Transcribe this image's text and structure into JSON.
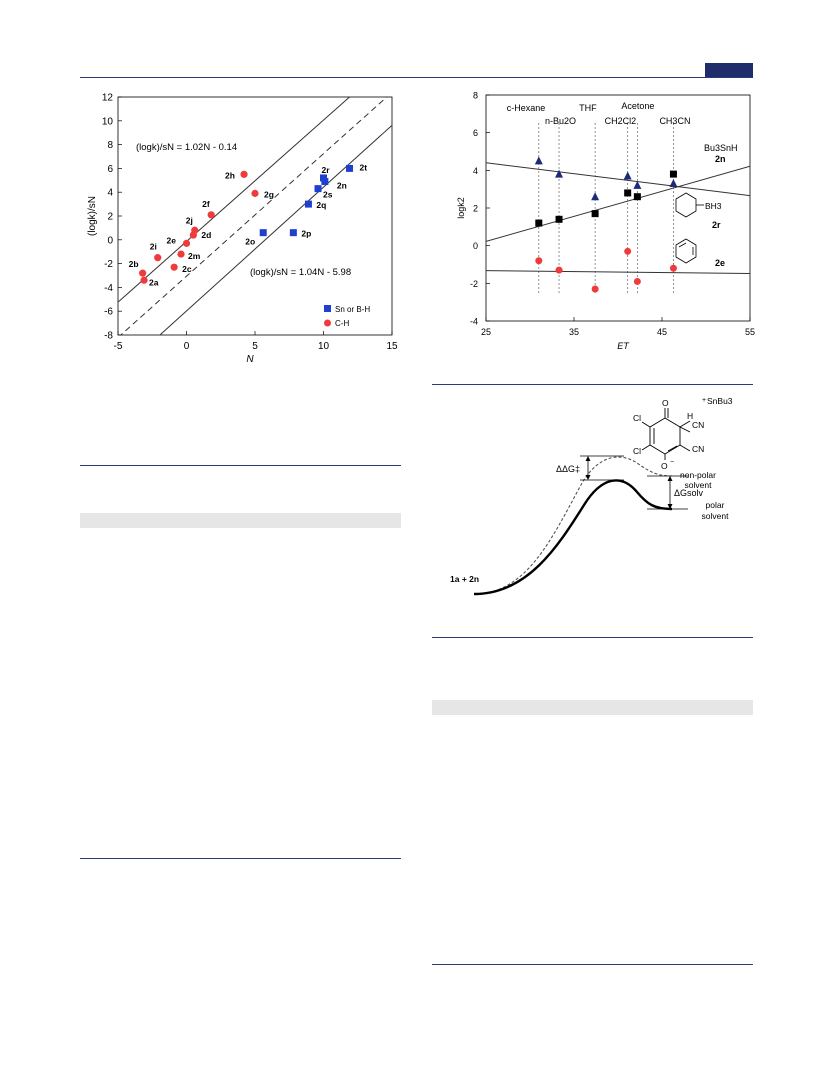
{
  "colors": {
    "rule": "#2b3a7a",
    "tab": "#1f2d6b",
    "band": "#e6e6e6",
    "blue": "#1f3fd1",
    "red": "#ef3b3b",
    "navy": "#1d2a7a"
  },
  "figure_left": {
    "xlabel": "N",
    "ylabel": "(logk)/sN",
    "xticks": [
      "-5",
      "0",
      "5",
      "10",
      "15"
    ],
    "yticks": [
      "12",
      "10",
      "8",
      "6",
      "4",
      "2",
      "0",
      "-2",
      "-4",
      "-6",
      "-8"
    ],
    "eq_upper": "(logk)/sN = 1.02N - 0.14",
    "eq_lower": "(logk)/sN = 1.04N - 5.98",
    "legend": [
      "Sn or B-H",
      "C-H"
    ]
  },
  "figure_right": {
    "xlabel": "ET",
    "ylabel": "logk2",
    "xticks": [
      "25",
      "35",
      "45",
      "55"
    ],
    "yticks": [
      "8",
      "6",
      "4",
      "2",
      "0",
      "-2",
      "-4"
    ],
    "solvents": [
      "c-Hexane",
      "n-Bu2O",
      "THF",
      "CH2Cl2",
      "Acetone",
      "CH3CN"
    ],
    "labels": {
      "bu3snh": "Bu3SnH",
      "n2n": "2n",
      "bh3": "BH3",
      "n2r": "2r",
      "n2e": "2e"
    }
  },
  "figure_energy": {
    "reactants": "1a  +  2n",
    "ddg": "ΔΔG‡",
    "dgsolv": "ΔGsolv",
    "nonpolar": [
      "non-polar",
      "solvent"
    ],
    "polar": [
      "polar",
      "solvent"
    ],
    "cation": "SnBu3",
    "atoms": {
      "o": "O",
      "cl1": "Cl",
      "cl2": "Cl",
      "h": "H",
      "cn1": "CN",
      "cn2": "CN",
      "om": "O"
    }
  },
  "chart_data": [
    {
      "type": "scatter",
      "xlabel": "N",
      "ylabel": "(logk)/sN",
      "xlim": [
        -5,
        15
      ],
      "ylim": [
        -8,
        12
      ],
      "series": [
        {
          "name": "Sn or B-H",
          "points": [
            {
              "label": "2o",
              "x": 5.6,
              "y": 0.6
            },
            {
              "label": "2p",
              "x": 7.8,
              "y": 0.6
            },
            {
              "label": "2q",
              "x": 8.9,
              "y": 3.0
            },
            {
              "label": "2s",
              "x": 9.6,
              "y": 4.3
            },
            {
              "label": "2r",
              "x": 10.0,
              "y": 5.2
            },
            {
              "label": "2n",
              "x": 10.1,
              "y": 4.9
            },
            {
              "label": "2t",
              "x": 11.9,
              "y": 6.0
            }
          ]
        },
        {
          "name": "C-H",
          "points": [
            {
              "label": "2a",
              "x": -3.1,
              "y": -3.4
            },
            {
              "label": "2b",
              "x": -3.2,
              "y": -2.8
            },
            {
              "label": "2i",
              "x": -2.1,
              "y": -1.5
            },
            {
              "label": "2c",
              "x": -0.9,
              "y": -2.3
            },
            {
              "label": "2m",
              "x": -0.4,
              "y": -1.2
            },
            {
              "label": "2e",
              "x": 0.0,
              "y": -0.3
            },
            {
              "label": "2d",
              "x": 0.5,
              "y": 0.4
            },
            {
              "label": "2j",
              "x": 0.6,
              "y": 0.8
            },
            {
              "label": "2f",
              "x": 1.8,
              "y": 2.1
            },
            {
              "label": "2g",
              "x": 5.0,
              "y": 3.9
            },
            {
              "label": "2h",
              "x": 4.2,
              "y": 5.5
            }
          ]
        }
      ],
      "lines": [
        {
          "name": "(logk)/sN = 1.02N - 0.14",
          "slope": 1.02,
          "intercept": -0.14,
          "style": "solid"
        },
        {
          "name": "dashed",
          "slope": 1.03,
          "intercept": -3.06,
          "style": "dashed"
        },
        {
          "name": "(logk)/sN = 1.04N - 5.98",
          "slope": 1.04,
          "intercept": -5.98,
          "style": "solid"
        }
      ]
    },
    {
      "type": "scatter",
      "xlabel": "ET",
      "ylabel": "logk2",
      "xlim": [
        25,
        55
      ],
      "ylim": [
        -4,
        8
      ],
      "series": [
        {
          "name": "Bu3SnH (2n)",
          "marker": "square",
          "x": [
            31.0,
            33.3,
            37.4,
            41.1,
            42.2,
            46.3
          ],
          "y": [
            1.2,
            1.4,
            1.7,
            2.8,
            2.6,
            3.8
          ]
        },
        {
          "name": "BH3 complex (2r)",
          "marker": "triangle",
          "x": [
            31.0,
            33.3,
            37.4,
            41.1,
            42.2,
            46.3
          ],
          "y": [
            4.5,
            3.8,
            2.6,
            3.7,
            3.2,
            3.3
          ]
        },
        {
          "name": "2e",
          "marker": "circle",
          "x": [
            31.0,
            33.3,
            37.4,
            41.1,
            42.2,
            46.3
          ],
          "y": [
            -0.8,
            -1.3,
            -2.3,
            -0.3,
            -1.9,
            -1.2
          ]
        }
      ],
      "solvent_et": [
        31.0,
        33.3,
        37.4,
        41.1,
        42.2,
        46.3
      ],
      "lines": [
        {
          "name": "2n fit",
          "slope": 0.133,
          "intercept": -3.1
        },
        {
          "name": "2r fit",
          "slope": -0.058,
          "intercept": 5.85
        },
        {
          "name": "2e fit",
          "slope": -0.005,
          "intercept": -1.2
        }
      ]
    }
  ]
}
